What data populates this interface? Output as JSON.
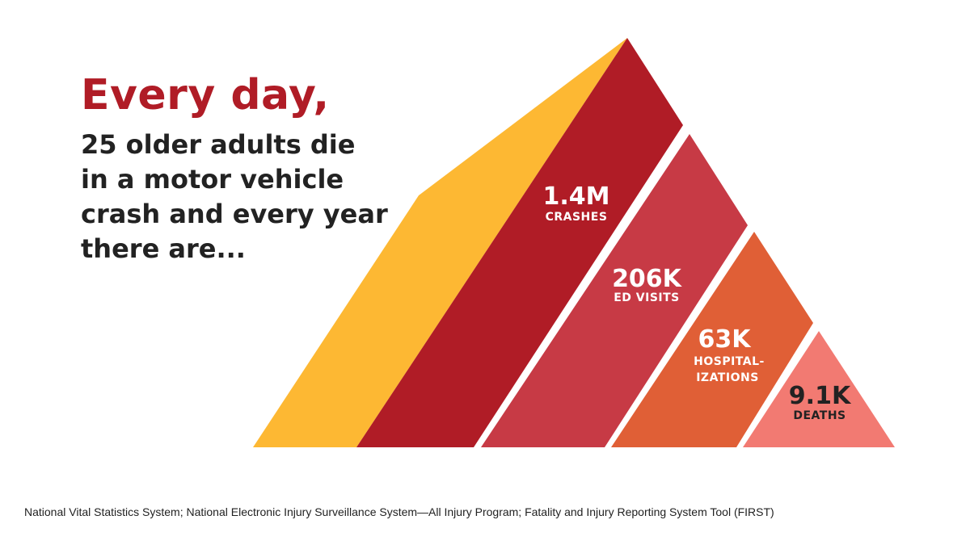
{
  "headline": "Every day,",
  "subtext": "25 older adults die in a motor vehicle crash and every year there are...",
  "source": "National Vital Statistics System; National Electronic Injury Surveillance System—All Injury Program; Fatality and Injury Reporting System Tool (FIRST)",
  "chart_data": {
    "type": "pyramid",
    "title": "",
    "series": [
      {
        "value_label": "1.4M",
        "label": "CRASHES",
        "value": 1400000,
        "color": "#b01c26"
      },
      {
        "value_label": "206K",
        "label": "ED VISITS",
        "value": 206000,
        "color": "#c73a45"
      },
      {
        "value_label": "63K",
        "label_lines": [
          "HOSPITAL-",
          "IZATIONS"
        ],
        "value": 63000,
        "color": "#e05f36"
      },
      {
        "value_label": "9.1K",
        "label": "DEATHS",
        "value": 9100,
        "color": "#f27a72"
      }
    ],
    "side_color": "#fdb833"
  }
}
